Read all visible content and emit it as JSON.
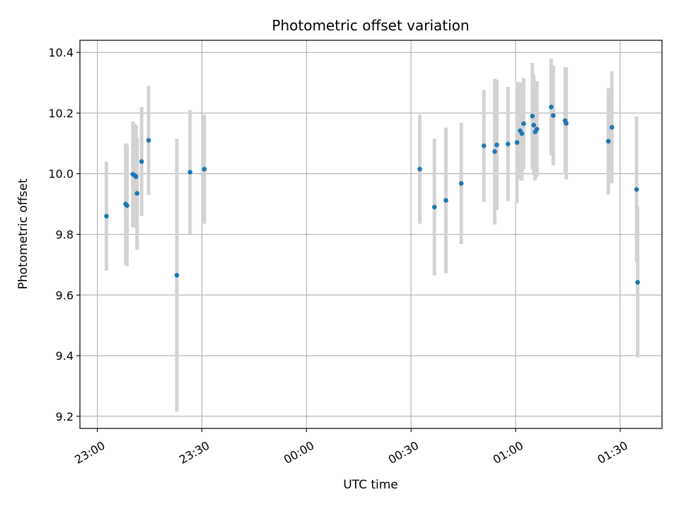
{
  "chart_data": {
    "type": "scatter",
    "title": "Photometric offset variation",
    "xlabel": "UTC time",
    "ylabel": "Photometric offset",
    "x_axis_type": "time",
    "x_start": "23:00",
    "xlim_minutes": [
      -5,
      162
    ],
    "ylim": [
      9.16,
      10.44
    ],
    "x_ticks": [
      {
        "minutes": 0,
        "label": "23:00"
      },
      {
        "minutes": 30,
        "label": "23:30"
      },
      {
        "minutes": 60,
        "label": "00:00"
      },
      {
        "minutes": 90,
        "label": "00:30"
      },
      {
        "minutes": 120,
        "label": "01:00"
      },
      {
        "minutes": 150,
        "label": "01:30"
      }
    ],
    "y_ticks": [
      {
        "value": 9.2,
        "label": "9.2"
      },
      {
        "value": 9.4,
        "label": "9.4"
      },
      {
        "value": 9.6,
        "label": "9.6"
      },
      {
        "value": 9.8,
        "label": "9.8"
      },
      {
        "value": 10.0,
        "label": "10.0"
      },
      {
        "value": 10.2,
        "label": "10.2"
      },
      {
        "value": 10.4,
        "label": "10.4"
      }
    ],
    "grid": true,
    "point_color": "#1f77b4",
    "errorbar_color": "#d3d3d3",
    "points": [
      {
        "t": 2.6,
        "y": 9.86,
        "err": 0.18
      },
      {
        "t": 8.1,
        "y": 9.9,
        "err": 0.2
      },
      {
        "t": 8.5,
        "y": 9.895,
        "err": 0.2
      },
      {
        "t": 10.2,
        "y": 9.998,
        "err": 0.175
      },
      {
        "t": 10.7,
        "y": 9.995,
        "err": 0.17
      },
      {
        "t": 11.1,
        "y": 9.99,
        "err": 0.17
      },
      {
        "t": 11.4,
        "y": 9.935,
        "err": 0.185
      },
      {
        "t": 12.7,
        "y": 10.04,
        "err": 0.18
      },
      {
        "t": 14.7,
        "y": 10.11,
        "err": 0.18
      },
      {
        "t": 22.8,
        "y": 9.665,
        "err": 0.45
      },
      {
        "t": 26.6,
        "y": 10.005,
        "err": 0.205
      },
      {
        "t": 30.7,
        "y": 10.015,
        "err": 0.18
      },
      {
        "t": 92.5,
        "y": 10.015,
        "err": 0.18
      },
      {
        "t": 96.7,
        "y": 9.89,
        "err": 0.225
      },
      {
        "t": 100.0,
        "y": 9.912,
        "err": 0.24
      },
      {
        "t": 104.4,
        "y": 9.968,
        "err": 0.2
      },
      {
        "t": 110.9,
        "y": 10.092,
        "err": 0.185
      },
      {
        "t": 114.0,
        "y": 10.073,
        "err": 0.24
      },
      {
        "t": 114.6,
        "y": 10.095,
        "err": 0.215
      },
      {
        "t": 117.8,
        "y": 10.098,
        "err": 0.188
      },
      {
        "t": 120.4,
        "y": 10.103,
        "err": 0.2
      },
      {
        "t": 121.3,
        "y": 10.142,
        "err": 0.16
      },
      {
        "t": 121.8,
        "y": 10.132,
        "err": 0.155
      },
      {
        "t": 122.3,
        "y": 10.165,
        "err": 0.15
      },
      {
        "t": 124.8,
        "y": 10.19,
        "err": 0.175
      },
      {
        "t": 125.2,
        "y": 10.16,
        "err": 0.165
      },
      {
        "t": 125.6,
        "y": 10.138,
        "err": 0.16
      },
      {
        "t": 126.1,
        "y": 10.147,
        "err": 0.158
      },
      {
        "t": 130.2,
        "y": 10.22,
        "err": 0.16
      },
      {
        "t": 130.8,
        "y": 10.192,
        "err": 0.165
      },
      {
        "t": 134.2,
        "y": 10.175,
        "err": 0.175
      },
      {
        "t": 134.5,
        "y": 10.166,
        "err": 0.185
      },
      {
        "t": 146.6,
        "y": 10.107,
        "err": 0.175
      },
      {
        "t": 147.6,
        "y": 10.153,
        "err": 0.185
      },
      {
        "t": 154.7,
        "y": 9.948,
        "err": 0.24
      },
      {
        "t": 155.0,
        "y": 9.642,
        "err": 0.248
      }
    ]
  }
}
